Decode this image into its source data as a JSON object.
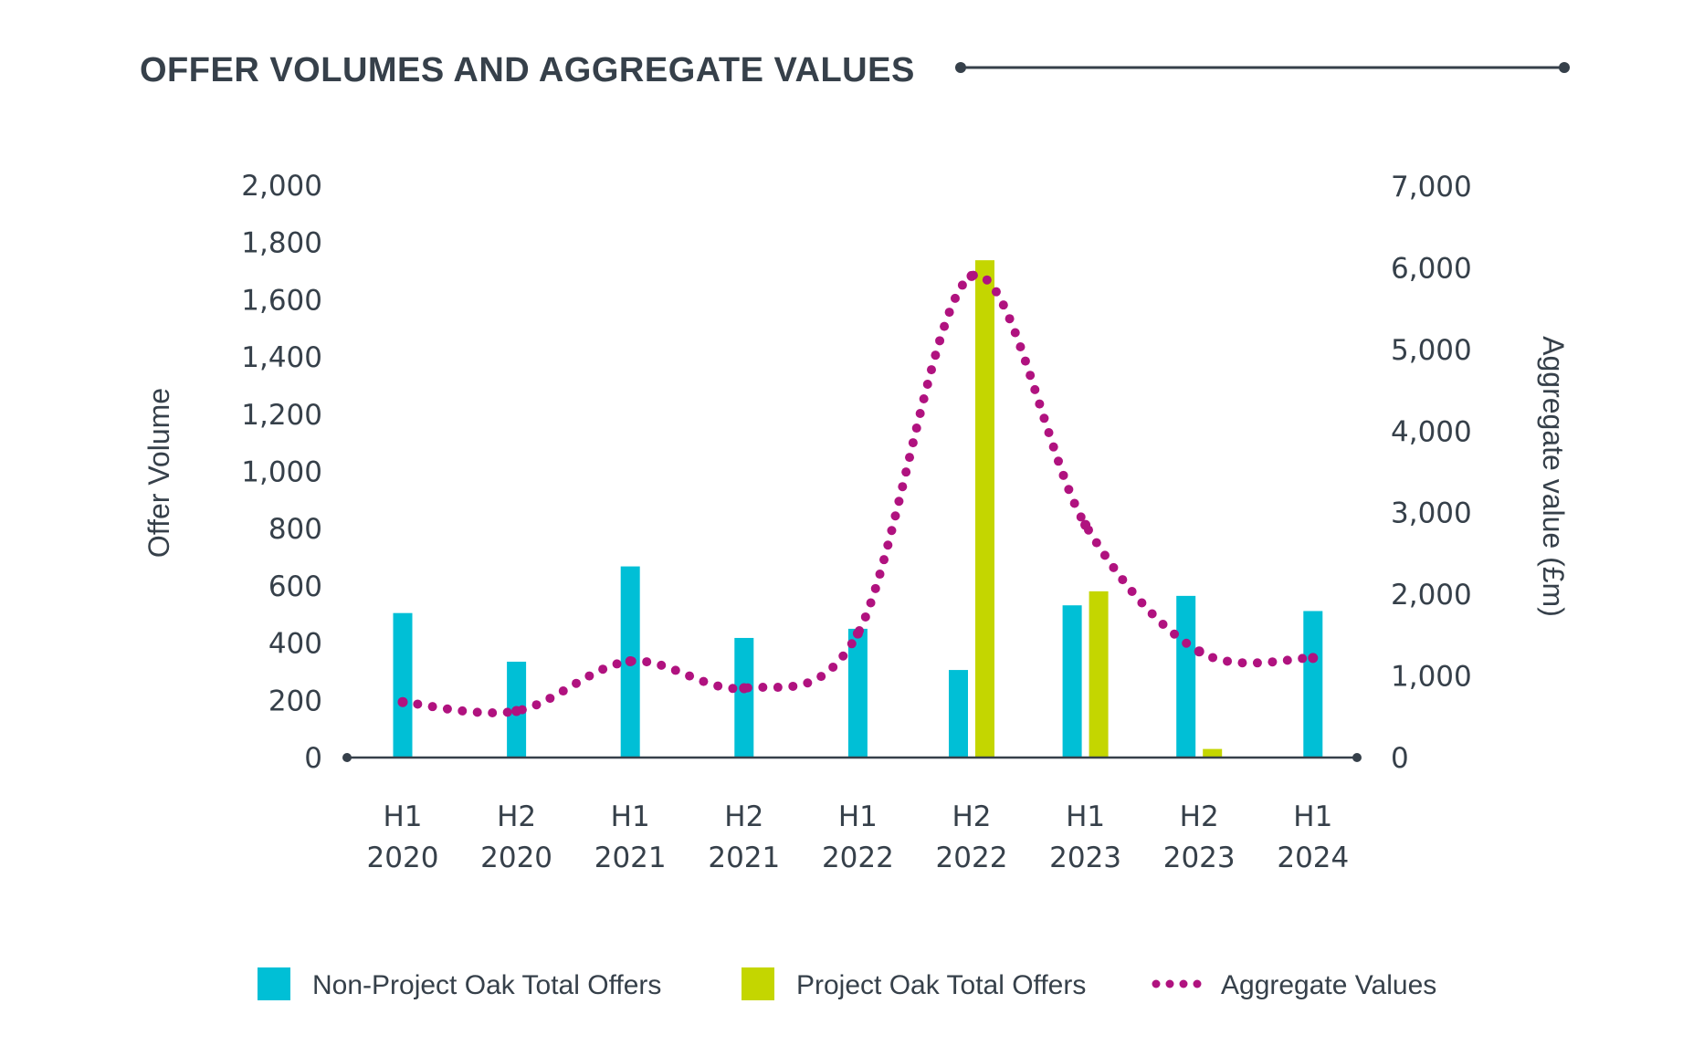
{
  "chart_data": {
    "type": "bar",
    "title": "OFFER VOLUMES AND AGGREGATE VALUES",
    "categories": [
      [
        "H1",
        "2020"
      ],
      [
        "H2",
        "2020"
      ],
      [
        "H1",
        "2021"
      ],
      [
        "H2",
        "2021"
      ],
      [
        "H1",
        "2022"
      ],
      [
        "H2",
        "2022"
      ],
      [
        "H1",
        "2023"
      ],
      [
        "H2",
        "2023"
      ],
      [
        "H1",
        "2024"
      ]
    ],
    "ylabel": "Offer Volume",
    "y2label": "Aggregate value (£m)",
    "ylim": [
      0,
      2000
    ],
    "y2lim": [
      0,
      7000
    ],
    "yticks": [
      "0",
      "200",
      "400",
      "600",
      "800",
      "1,000",
      "1,200",
      "1,400",
      "1,600",
      "1,800",
      "2,000"
    ],
    "y2ticks": [
      "0",
      "1,000",
      "2,000",
      "3,000",
      "4,000",
      "5,000",
      "6,000",
      "7,000"
    ],
    "grid": false,
    "legend_position": "bottom",
    "series": [
      {
        "name": "Non-Project Oak Total Offers",
        "type": "bar",
        "axis": "left",
        "color": "#00bfd6",
        "values": [
          505,
          335,
          668,
          418,
          450,
          306,
          532,
          565,
          512
        ]
      },
      {
        "name": "Project Oak Total Offers",
        "type": "bar",
        "axis": "left",
        "color": "#c4d600",
        "values": [
          null,
          null,
          null,
          null,
          null,
          1738,
          581,
          30,
          null
        ]
      },
      {
        "name": "Aggregate Values",
        "type": "line",
        "style": "dotted",
        "axis": "right",
        "color": "#b0127f",
        "values": [
          680,
          570,
          1180,
          850,
          1520,
          5900,
          2850,
          1300,
          1220
        ]
      }
    ]
  },
  "colors": {
    "text": "#36404a",
    "axis": "#36404a"
  }
}
